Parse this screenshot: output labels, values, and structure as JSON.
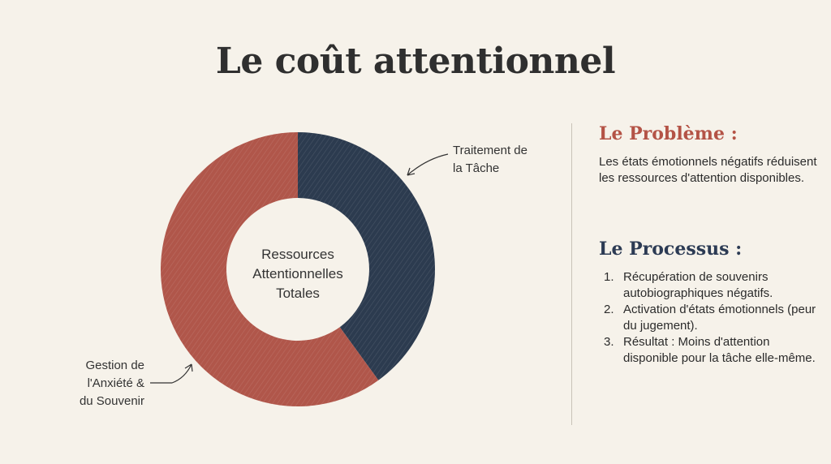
{
  "title": "Le coût attentionnel",
  "chart_data": {
    "type": "pie",
    "donut": true,
    "center_label": "Ressources Attentionnelles Totales",
    "slices": [
      {
        "label": "Traitement de la Tâche",
        "value": 40,
        "color": "#2c3b4f"
      },
      {
        "label": "Gestion de l'Anxiété & du Souvenir",
        "value": 60,
        "color": "#b0564a"
      }
    ]
  },
  "labels": {
    "tache_line1": "Traitement de",
    "tache_line2": "la Tâche",
    "anx_line1": "Gestion de",
    "anx_line2": "l'Anxiété &",
    "anx_line3": "du Souvenir",
    "center_line1": "Ressources",
    "center_line2": "Attentionnelles",
    "center_line3": "Totales"
  },
  "probleme": {
    "heading": "Le Problème :",
    "text": "Les états émotionnels négatifs réduisent les ressources d'attention disponibles."
  },
  "processus": {
    "heading": "Le Processus :",
    "steps": [
      {
        "num": "1.",
        "text": "Récupération de souvenirs autobiographiques négatifs."
      },
      {
        "num": "2.",
        "text": "Activation d'états émotionnels (peur du jugement)."
      },
      {
        "num": "3.",
        "text": "Résultat : Moins d'attention disponible pour la tâche elle-même."
      }
    ]
  }
}
